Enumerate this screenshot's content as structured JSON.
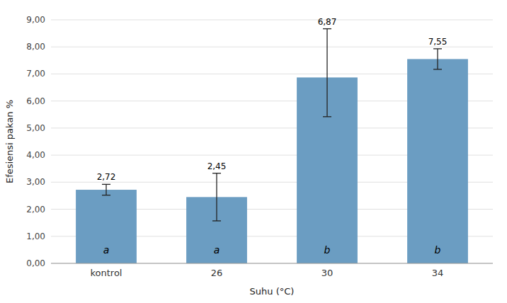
{
  "chart_data": {
    "type": "bar",
    "categories": [
      "kontrol",
      "26",
      "30",
      "34"
    ],
    "values": [
      2.72,
      2.45,
      6.87,
      7.55
    ],
    "value_labels": [
      "2,72",
      "2,45",
      "6,87",
      "7,55"
    ],
    "errors_up": [
      0.2,
      0.88,
      1.8,
      0.38
    ],
    "errors_down": [
      0.2,
      0.88,
      1.45,
      0.38
    ],
    "annotations": [
      "a",
      "a",
      "b",
      "b"
    ],
    "color": "#6B9DC2",
    "xlabel": "Suhu (°C)",
    "ylabel": "Efesiensi pakan %",
    "ylim": [
      0,
      9.0
    ],
    "yticks": [
      {
        "value": 0.0,
        "label": "0,00"
      },
      {
        "value": 1.0,
        "label": "1,00"
      },
      {
        "value": 2.0,
        "label": "2,00"
      },
      {
        "value": 3.0,
        "label": "3,00"
      },
      {
        "value": 4.0,
        "label": "4,00"
      },
      {
        "value": 5.0,
        "label": "5,00"
      },
      {
        "value": 6.0,
        "label": "6,00"
      },
      {
        "value": 7.0,
        "label": "7,00"
      },
      {
        "value": 8.0,
        "label": "8,00"
      },
      {
        "value": 9.0,
        "label": "9,00"
      }
    ],
    "grid": true,
    "data_labels": true
  }
}
